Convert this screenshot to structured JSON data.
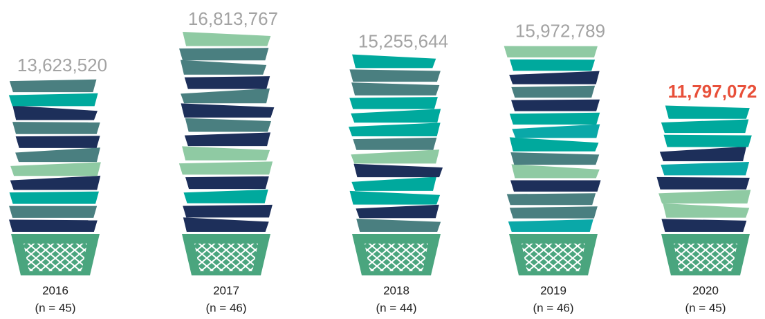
{
  "chart_data": {
    "type": "pictorial-stack",
    "categories": [
      "2016",
      "2017",
      "2018",
      "2019",
      "2020"
    ],
    "sublabels": [
      "(n = 45)",
      "(n = 46)",
      "(n = 44)",
      "(n = 46)",
      "(n = 45)"
    ],
    "values": [
      13623520,
      16813767,
      15255644,
      15972789,
      11797072
    ],
    "value_labels": [
      "13,623,520",
      "16,813,767",
      "15,255,644",
      "15,972,789",
      "11,797,072"
    ],
    "label_colors": [
      "#a3a3a3",
      "#a3a3a3",
      "#a3a3a3",
      "#a3a3a3",
      "#e8503a"
    ],
    "label_weights": [
      "normal",
      "normal",
      "normal",
      "normal",
      "bold"
    ],
    "layer_colors": [
      "#00a99d",
      "#1d2f5a",
      "#4a7f80",
      "#8fcaa3",
      "#0aa8a8",
      "#1d2f5a",
      "#00a99d",
      "#4a7f80"
    ],
    "basket_color": "#4aa57e"
  }
}
